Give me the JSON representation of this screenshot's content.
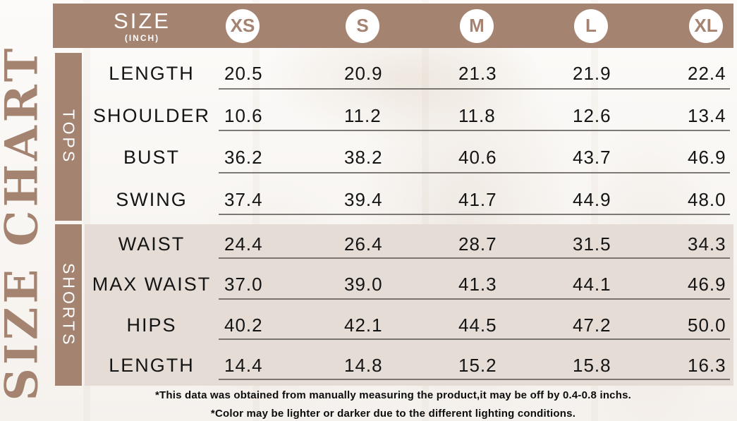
{
  "side_title": "SIZE CHART",
  "header": {
    "title": "SIZE",
    "subtitle": "(INCH)"
  },
  "sizes": [
    "XS",
    "S",
    "M",
    "L",
    "XL"
  ],
  "sections": [
    {
      "name": "TOPS",
      "rows": [
        {
          "label": "LENGTH",
          "values": [
            "20.5",
            "20.9",
            "21.3",
            "21.9",
            "22.4"
          ]
        },
        {
          "label": "SHOULDER",
          "values": [
            "10.6",
            "11.2",
            "11.8",
            "12.6",
            "13.4"
          ]
        },
        {
          "label": "BUST",
          "values": [
            "36.2",
            "38.2",
            "40.6",
            "43.7",
            "46.9"
          ]
        },
        {
          "label": "SWING",
          "values": [
            "37.4",
            "39.4",
            "41.7",
            "44.9",
            "48.0"
          ]
        }
      ]
    },
    {
      "name": "SHORTS",
      "rows": [
        {
          "label": "WAIST",
          "values": [
            "24.4",
            "26.4",
            "28.7",
            "31.5",
            "34.3"
          ]
        },
        {
          "label": "MAX WAIST",
          "values": [
            "37.0",
            "39.0",
            "41.3",
            "44.1",
            "46.9"
          ]
        },
        {
          "label": "HIPS",
          "values": [
            "40.2",
            "42.1",
            "44.5",
            "47.2",
            "50.0"
          ]
        },
        {
          "label": "LENGTH",
          "values": [
            "14.4",
            "14.8",
            "15.2",
            "15.8",
            "16.3"
          ]
        }
      ]
    }
  ],
  "notes": [
    "*This data was obtained from manually measuring the product,it may be off by 0.4-0.8 inchs.",
    "*Color may be lighter or darker due to the different lighting conditions."
  ],
  "colors": {
    "brown": "#a48371",
    "beige": "#e5dcd5",
    "line": "#5f5a55",
    "text": "#141414"
  }
}
